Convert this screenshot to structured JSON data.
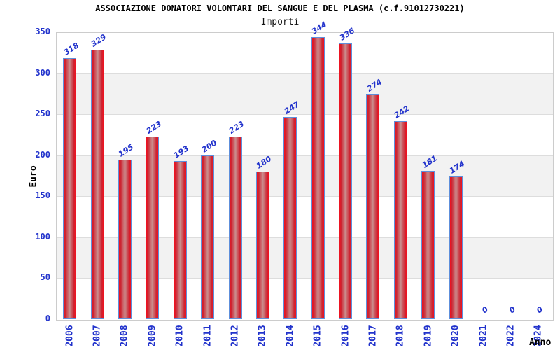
{
  "chart_data": {
    "type": "bar",
    "title": "ASSOCIAZIONE DONATORI VOLONTARI DEL SANGUE E DEL PLASMA (c.f.91012730221)",
    "subtitle": "Importi",
    "xlabel": "Anno",
    "ylabel": "Euro",
    "categories": [
      "2006",
      "2007",
      "2008",
      "2009",
      "2010",
      "2011",
      "2012",
      "2013",
      "2014",
      "2015",
      "2016",
      "2017",
      "2018",
      "2019",
      "2020",
      "2021",
      "2022",
      "2024"
    ],
    "values": [
      318,
      329,
      195,
      223,
      193,
      200,
      223,
      180,
      247,
      344,
      336,
      274,
      242,
      181,
      174,
      0,
      0,
      0
    ],
    "ylim": [
      0,
      350
    ],
    "yticks": [
      0,
      50,
      100,
      150,
      200,
      250,
      300,
      350
    ],
    "grid": "horizontal-bands",
    "legend": "none",
    "value_labels_rotated": true,
    "colors": {
      "bar_edge": "#f5111f",
      "bar_mid": "#cc2230",
      "bar_center": "#cb8e8e",
      "bar_border": "#5e8fdb",
      "axis_text": "#2233cc",
      "value_text": "#2233cc",
      "band_gray": "#f2f2f2",
      "grid_line": "#dddddd",
      "plot_border": "#cccccc",
      "title_text": "#000000"
    }
  }
}
